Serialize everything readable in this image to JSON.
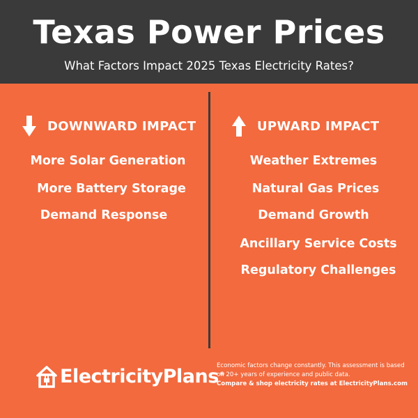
{
  "header": {
    "title": "Texas Power Prices",
    "subtitle": "What Factors Impact 2025 Texas Electricity Rates?"
  },
  "downward": {
    "heading": "DOWNWARD IMPACT",
    "icon": "arrow-down-icon",
    "items": [
      "More Solar Generation",
      "More Battery Storage",
      "Demand Response"
    ]
  },
  "upward": {
    "heading": "UPWARD IMPACT",
    "icon": "arrow-up-icon",
    "items": [
      "Weather Extremes",
      "Natural Gas Prices",
      "Demand Growth",
      "Ancillary Service Costs",
      "Regulatory Challenges"
    ]
  },
  "footer": {
    "logo_text": "ElectricityPlans",
    "logo_reg": "®",
    "note_line1": "Economic factors change constantly. This  assessment is based on 20+ years of experience and public data.",
    "note_line2": "Compare & shop electricity rates at ElectricityPlans.com"
  },
  "colors": {
    "background": "#f26a3e",
    "header_bg": "#3a3a3a",
    "text": "#ffffff"
  }
}
